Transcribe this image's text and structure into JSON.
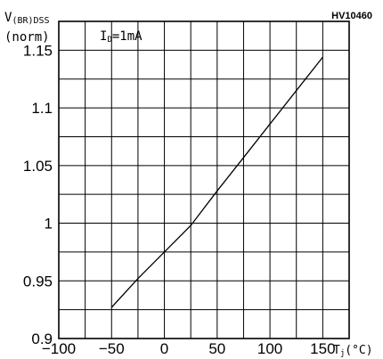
{
  "chart_data": {
    "type": "line",
    "figure_code": "HV10460",
    "annotation": "ID=1mA",
    "annotation_main": "I",
    "annotation_sub": "D",
    "annotation_rest": "=1mA",
    "ylabel_main": "V",
    "ylabel_sub": "(BR)DSS",
    "ylabel_line2": "(norm)",
    "xlabel": "Tj(°C)",
    "xlabel_main": "T",
    "xlabel_sub": "j",
    "xlabel_rest": "(°C)",
    "xlim": [
      -100,
      175
    ],
    "ylim": [
      0.9,
      1.175
    ],
    "x_ticks": [
      -100,
      -50,
      0,
      50,
      100,
      150
    ],
    "x_tick_labels": [
      "−100",
      "−50",
      "0",
      "50",
      "100",
      "150"
    ],
    "y_ticks": [
      0.9,
      0.95,
      1.0,
      1.05,
      1.1,
      1.15
    ],
    "y_tick_labels": [
      "0.9",
      "0.95",
      "1",
      "1.05",
      "1.1",
      "1.15"
    ],
    "x_grid_step": 25,
    "y_grid_step": 0.025,
    "grid": true,
    "series": [
      {
        "x": [
          -50,
          -25,
          0,
          25,
          50,
          75,
          100,
          125,
          150
        ],
        "y": [
          0.927,
          0.952,
          0.975,
          0.998,
          1.028,
          1.057,
          1.086,
          1.115,
          1.144
        ]
      }
    ]
  }
}
